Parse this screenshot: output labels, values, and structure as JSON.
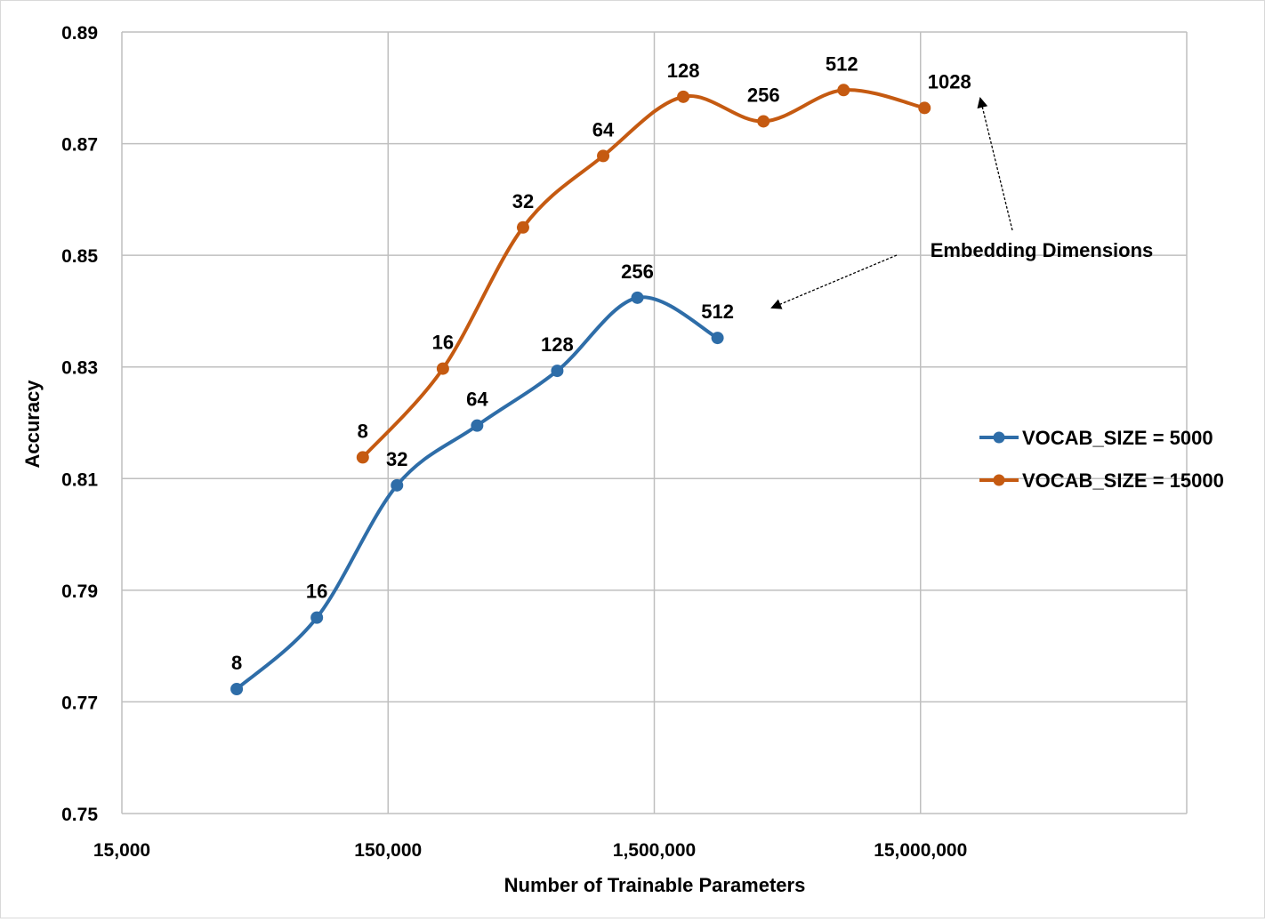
{
  "chart_data": {
    "type": "line",
    "xlabel": "Number of Trainable Parameters",
    "ylabel": "Accuracy",
    "x_scale": "log",
    "xlim": [
      15000,
      150000000
    ],
    "ylim": [
      0.75,
      0.89
    ],
    "x_ticks": [
      {
        "value": 15000,
        "label": "15,000"
      },
      {
        "value": 150000,
        "label": "150,000"
      },
      {
        "value": 1500000,
        "label": "1,500,000"
      },
      {
        "value": 15000000,
        "label": "15,000,000"
      }
    ],
    "y_ticks": [
      {
        "value": 0.75,
        "label": "0.75"
      },
      {
        "value": 0.77,
        "label": "0.77"
      },
      {
        "value": 0.79,
        "label": "0.79"
      },
      {
        "value": 0.81,
        "label": "0.81"
      },
      {
        "value": 0.83,
        "label": "0.83"
      },
      {
        "value": 0.85,
        "label": "0.85"
      },
      {
        "value": 0.87,
        "label": "0.87"
      },
      {
        "value": 0.89,
        "label": "0.89"
      }
    ],
    "grid": true,
    "legend_position": "right",
    "series": [
      {
        "name": "VOCAB_SIZE = 5000",
        "color": "#2E6DA8",
        "points": [
          {
            "x": 40500,
            "y": 0.7723,
            "label": "8"
          },
          {
            "x": 81000,
            "y": 0.7851,
            "label": "16"
          },
          {
            "x": 162000,
            "y": 0.8088,
            "label": "32"
          },
          {
            "x": 324000,
            "y": 0.8195,
            "label": "64"
          },
          {
            "x": 648000,
            "y": 0.8293,
            "label": "128"
          },
          {
            "x": 1296000,
            "y": 0.8424,
            "label": "256"
          },
          {
            "x": 2592000,
            "y": 0.8352,
            "label": "512"
          }
        ]
      },
      {
        "name": "VOCAB_SIZE = 15000",
        "color": "#C55A11",
        "points": [
          {
            "x": 120500,
            "y": 0.8138,
            "label": "8"
          },
          {
            "x": 241000,
            "y": 0.8297,
            "label": "16"
          },
          {
            "x": 482000,
            "y": 0.855,
            "label": "32"
          },
          {
            "x": 964000,
            "y": 0.8678,
            "label": "64"
          },
          {
            "x": 1928000,
            "y": 0.8784,
            "label": "128"
          },
          {
            "x": 3856000,
            "y": 0.874,
            "label": "256"
          },
          {
            "x": 7712000,
            "y": 0.8796,
            "label": "512"
          },
          {
            "x": 15530000,
            "y": 0.8764,
            "label": "1028"
          }
        ]
      }
    ],
    "annotations": [
      {
        "text": "Embedding Dimensions"
      }
    ]
  }
}
